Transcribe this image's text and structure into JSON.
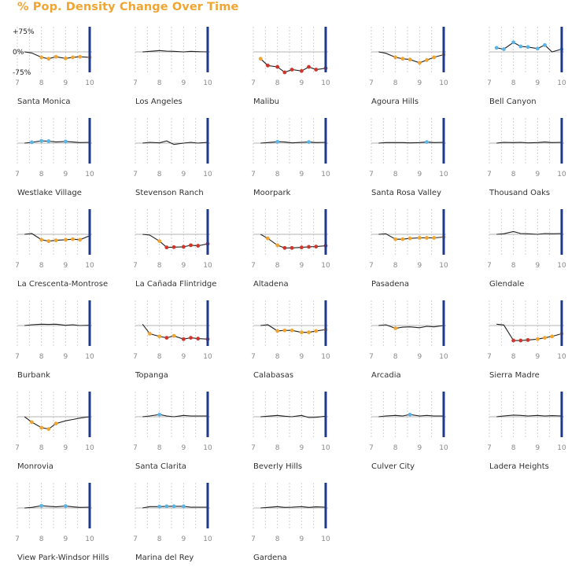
{
  "title": "% Pop. Density Change Over Time",
  "colors": {
    "title": "#f0a531",
    "line": "#222222",
    "baseline": "#b5b5b5",
    "dashed": "#d2d2d2",
    "endbar": "#1f3a8a",
    "increase": "#5ab4e6",
    "decrease_mid": "#f0a531",
    "decrease_high": "#d0352b"
  },
  "chart_data": {
    "type": "line",
    "small_multiples": true,
    "xlim": [
      7,
      10
    ],
    "x_ticks": [
      7,
      8,
      9,
      10
    ],
    "x_minor_ticks": [
      7.5,
      8.5,
      9.5
    ],
    "ylim": [
      -75,
      75
    ],
    "y_tick_labels": [
      "+75%",
      "0%",
      "-75%"
    ],
    "x": [
      7.3,
      7.6,
      8.0,
      8.3,
      8.6,
      9.0,
      9.3,
      9.6,
      10.0
    ],
    "panels": [
      {
        "name": "Santa Monica",
        "values": [
          0,
          -4,
          -20,
          -25,
          -18,
          -24,
          -20,
          -18,
          -20
        ],
        "colors": [
          "",
          "",
          "decrease_mid",
          "decrease_mid",
          "decrease_mid",
          "decrease_mid",
          "decrease_mid",
          "decrease_mid",
          "decrease_mid"
        ]
      },
      {
        "name": "Los Angeles",
        "values": [
          0,
          2,
          5,
          3,
          2,
          0,
          2,
          1,
          0
        ],
        "colors": [
          "",
          "",
          "",
          "",
          "",
          "",
          "",
          "",
          ""
        ]
      },
      {
        "name": "Malibu",
        "values": [
          -25,
          -50,
          -55,
          -75,
          -65,
          -70,
          -55,
          -65,
          -60
        ],
        "colors": [
          "decrease_mid",
          "decrease_high",
          "decrease_high",
          "decrease_high",
          "decrease_high",
          "decrease_high",
          "decrease_high",
          "decrease_high",
          "decrease_high"
        ]
      },
      {
        "name": "Agoura Hills",
        "values": [
          0,
          -5,
          -20,
          -25,
          -28,
          -40,
          -30,
          -20,
          -10
        ],
        "colors": [
          "",
          "",
          "decrease_mid",
          "decrease_mid",
          "decrease_mid",
          "decrease_mid",
          "decrease_mid",
          "decrease_mid",
          "decrease_mid"
        ]
      },
      {
        "name": "Bell Canyon",
        "values": [
          15,
          10,
          35,
          20,
          18,
          12,
          25,
          0,
          10
        ],
        "colors": [
          "increase",
          "increase",
          "increase",
          "increase",
          "increase",
          "increase",
          "increase",
          "",
          "increase"
        ]
      },
      {
        "name": "Westlake Village",
        "values": [
          0,
          3,
          8,
          7,
          4,
          6,
          4,
          2,
          3
        ],
        "colors": [
          "",
          "increase",
          "increase",
          "increase",
          "",
          "increase",
          "",
          "",
          ""
        ]
      },
      {
        "name": "Stevenson Ranch",
        "values": [
          0,
          3,
          1,
          8,
          -5,
          0,
          3,
          0,
          3
        ],
        "colors": [
          "",
          "",
          "",
          "",
          "",
          "",
          "",
          "",
          ""
        ]
      },
      {
        "name": "Moorpark",
        "values": [
          0,
          2,
          5,
          4,
          1,
          3,
          4,
          2,
          3
        ],
        "colors": [
          "",
          "",
          "increase",
          "",
          "",
          "",
          "increase",
          "",
          ""
        ]
      },
      {
        "name": "Santa Rosa Valley",
        "values": [
          0,
          2,
          2,
          2,
          1,
          2,
          4,
          2,
          3
        ],
        "colors": [
          "",
          "",
          "",
          "",
          "",
          "",
          "increase",
          "",
          ""
        ]
      },
      {
        "name": "Thousand Oaks",
        "values": [
          0,
          3,
          2,
          3,
          1,
          2,
          4,
          2,
          3
        ],
        "colors": [
          "",
          "",
          "",
          "",
          "",
          "",
          "",
          "",
          ""
        ]
      },
      {
        "name": "La Crescenta-Montrose",
        "values": [
          0,
          3,
          -20,
          -25,
          -22,
          -20,
          -18,
          -20,
          -5
        ],
        "colors": [
          "",
          "",
          "decrease_mid",
          "decrease_mid",
          "decrease_mid",
          "decrease_mid",
          "decrease_mid",
          "decrease_mid",
          ""
        ]
      },
      {
        "name": "La Cañada Flintridge",
        "values": [
          0,
          -3,
          -25,
          -48,
          -47,
          -46,
          -40,
          -42,
          -35
        ],
        "colors": [
          "",
          "",
          "decrease_mid",
          "decrease_high",
          "decrease_high",
          "decrease_high",
          "decrease_high",
          "decrease_high",
          "decrease_high"
        ]
      },
      {
        "name": "Altadena",
        "values": [
          0,
          -15,
          -40,
          -50,
          -50,
          -48,
          -46,
          -45,
          -42
        ],
        "colors": [
          "",
          "decrease_mid",
          "decrease_mid",
          "decrease_high",
          "decrease_high",
          "decrease_high",
          "decrease_high",
          "decrease_high",
          "decrease_high"
        ]
      },
      {
        "name": "Pasadena",
        "values": [
          0,
          2,
          -18,
          -18,
          -15,
          -13,
          -13,
          -13,
          -10
        ],
        "colors": [
          "",
          "",
          "decrease_mid",
          "decrease_mid",
          "decrease_mid",
          "decrease_mid",
          "decrease_mid",
          "decrease_mid",
          "decrease_mid"
        ]
      },
      {
        "name": "Glendale",
        "values": [
          0,
          2,
          10,
          3,
          2,
          0,
          3,
          2,
          3
        ],
        "colors": [
          "",
          "",
          "",
          "",
          "",
          "",
          "",
          "",
          ""
        ]
      },
      {
        "name": "Burbank",
        "values": [
          0,
          3,
          5,
          4,
          5,
          1,
          3,
          0,
          1
        ],
        "colors": [
          "",
          "",
          "",
          "",
          "",
          "",
          "",
          "",
          ""
        ]
      },
      {
        "name": "Topanga",
        "values": [
          5,
          -30,
          -40,
          -45,
          -38,
          -50,
          -45,
          -48,
          -50
        ],
        "colors": [
          "",
          "decrease_mid",
          "decrease_mid",
          "decrease_high",
          "decrease_mid",
          "decrease_high",
          "decrease_high",
          "decrease_high",
          "decrease_high"
        ]
      },
      {
        "name": "Calabasas",
        "values": [
          0,
          3,
          -20,
          -18,
          -18,
          -25,
          -25,
          -20,
          -15
        ],
        "colors": [
          "",
          "",
          "decrease_mid",
          "decrease_mid",
          "decrease_mid",
          "decrease_mid",
          "decrease_mid",
          "decrease_mid",
          "decrease_mid"
        ]
      },
      {
        "name": "Arcadia",
        "values": [
          0,
          3,
          -10,
          -6,
          -5,
          -8,
          -3,
          -5,
          0
        ],
        "colors": [
          "",
          "",
          "decrease_mid",
          "",
          "",
          "",
          "",
          "",
          ""
        ]
      },
      {
        "name": "Sierra Madre",
        "values": [
          5,
          2,
          -55,
          -55,
          -53,
          -50,
          -45,
          -40,
          -30
        ],
        "colors": [
          "",
          "",
          "decrease_high",
          "decrease_high",
          "decrease_high",
          "decrease_mid",
          "decrease_mid",
          "decrease_mid",
          "decrease_mid"
        ]
      },
      {
        "name": "Monrovia",
        "values": [
          0,
          -20,
          -40,
          -45,
          -25,
          -15,
          -10,
          -5,
          0
        ],
        "colors": [
          "",
          "decrease_mid",
          "decrease_mid",
          "decrease_mid",
          "decrease_mid",
          "",
          "",
          "",
          ""
        ]
      },
      {
        "name": "Santa Clarita",
        "values": [
          0,
          3,
          8,
          3,
          0,
          5,
          3,
          3,
          3
        ],
        "colors": [
          "",
          "",
          "increase",
          "",
          "",
          "",
          "",
          "",
          ""
        ]
      },
      {
        "name": "Beverly Hills",
        "values": [
          0,
          2,
          5,
          2,
          0,
          5,
          -3,
          -2,
          2
        ],
        "colors": [
          "",
          "",
          "",
          "",
          "",
          "",
          "",
          "",
          ""
        ]
      },
      {
        "name": "Culver City",
        "values": [
          0,
          3,
          5,
          3,
          8,
          3,
          5,
          3,
          3
        ],
        "colors": [
          "",
          "",
          "",
          "",
          "increase",
          "",
          "",
          "",
          ""
        ]
      },
      {
        "name": "Ladera Heights",
        "values": [
          0,
          3,
          6,
          5,
          3,
          5,
          3,
          4,
          3
        ],
        "colors": [
          "",
          "",
          "",
          "",
          "",
          "",
          "",
          "",
          ""
        ]
      },
      {
        "name": "View Park-Windsor Hills",
        "values": [
          0,
          2,
          8,
          6,
          4,
          7,
          4,
          2,
          3
        ],
        "colors": [
          "",
          "",
          "increase",
          "",
          "",
          "increase",
          "",
          "",
          ""
        ]
      },
      {
        "name": "Marina del Rey",
        "values": [
          0,
          5,
          5,
          6,
          6,
          6,
          3,
          3,
          3
        ],
        "colors": [
          "",
          "",
          "increase",
          "increase",
          "increase",
          "increase",
          "",
          "",
          ""
        ]
      },
      {
        "name": "Gardena",
        "values": [
          0,
          2,
          5,
          2,
          3,
          5,
          2,
          4,
          3
        ],
        "colors": [
          "",
          "",
          "",
          "",
          "",
          "",
          "",
          "",
          ""
        ]
      }
    ]
  }
}
